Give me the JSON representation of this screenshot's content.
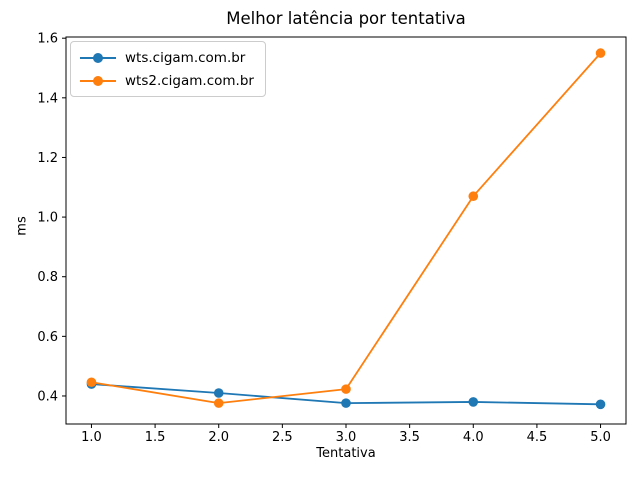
{
  "figure": {
    "background": "#ffffff",
    "text_color": "#000000",
    "spine_color": "#000000"
  },
  "chart_data": {
    "type": "line",
    "title": "Melhor latência por tentativa",
    "xlabel": "Tentativa",
    "ylabel": "ms",
    "x": [
      1,
      2,
      3,
      4,
      5
    ],
    "series": [
      {
        "name": "wts.cigam.com.br",
        "color": "#1f77b4",
        "marker": "circle",
        "values": [
          0.44,
          0.41,
          0.376,
          0.38,
          0.372
        ]
      },
      {
        "name": "wts2.cigam.com.br",
        "color": "#ff7f0e",
        "marker": "circle",
        "values": [
          0.446,
          0.376,
          0.423,
          1.07,
          1.55
        ]
      }
    ],
    "xlim": [
      0.8,
      5.2
    ],
    "ylim": [
      0.306,
      1.604
    ],
    "xticks": [
      1.0,
      1.5,
      2.0,
      2.5,
      3.0,
      3.5,
      4.0,
      4.5,
      5.0
    ],
    "yticks": [
      0.4,
      0.6,
      0.8,
      1.0,
      1.2,
      1.4,
      1.6
    ],
    "grid": false,
    "legend_position": "upper left"
  }
}
